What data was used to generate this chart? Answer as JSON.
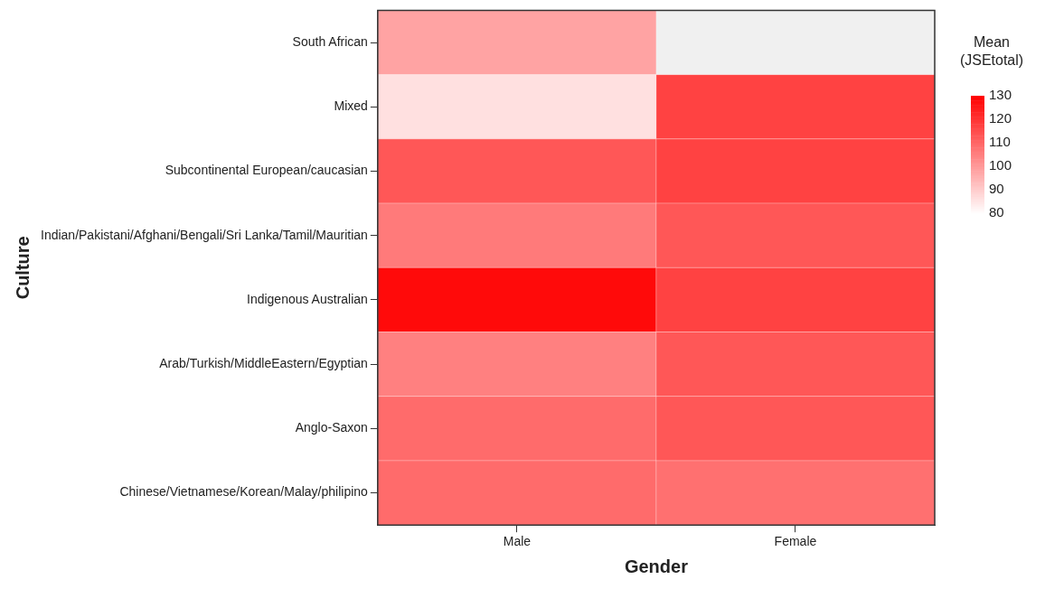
{
  "chart_data": {
    "type": "heatmap",
    "xlabel": "Gender",
    "ylabel": "Culture",
    "clabel": "Mean (JSEtotal)",
    "categories": [
      "Male",
      "Female"
    ],
    "y_categories": [
      "South African",
      "Mixed",
      "Subcontinental European/caucasian",
      "Indian/Pakistani/Afghani/Bengali/Sri Lanka/Tamil/Mauritian",
      "Indigenous Australian",
      "Arab/Turkish/MiddleEastern/Egyptian",
      "Anglo-Saxon",
      "Chinese/Vietnamese/Korean/Malay/philipino"
    ],
    "cells": [
      [
        98,
        null
      ],
      [
        86,
        117
      ],
      [
        113,
        117
      ],
      [
        106,
        113
      ],
      [
        128,
        117
      ],
      [
        105,
        113
      ],
      [
        109,
        113
      ],
      [
        109,
        108
      ]
    ],
    "clim": [
      80,
      130
    ],
    "cticks": [
      80,
      90,
      100,
      110,
      120,
      130
    ],
    "grid": false
  }
}
